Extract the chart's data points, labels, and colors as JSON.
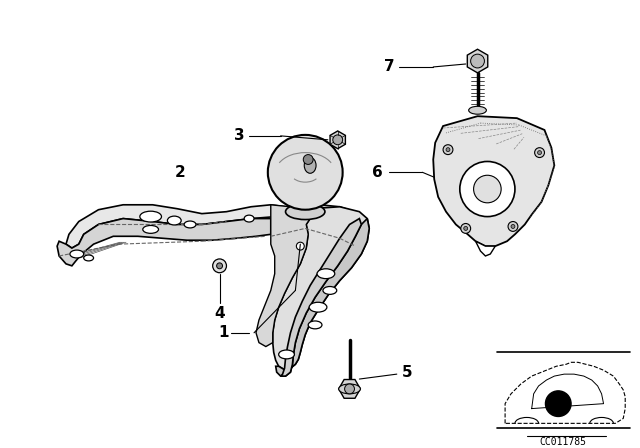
{
  "background_color": "#ffffff",
  "line_color": "#000000",
  "fig_width": 6.4,
  "fig_height": 4.48,
  "dpi": 100,
  "code_label": "CC011785"
}
